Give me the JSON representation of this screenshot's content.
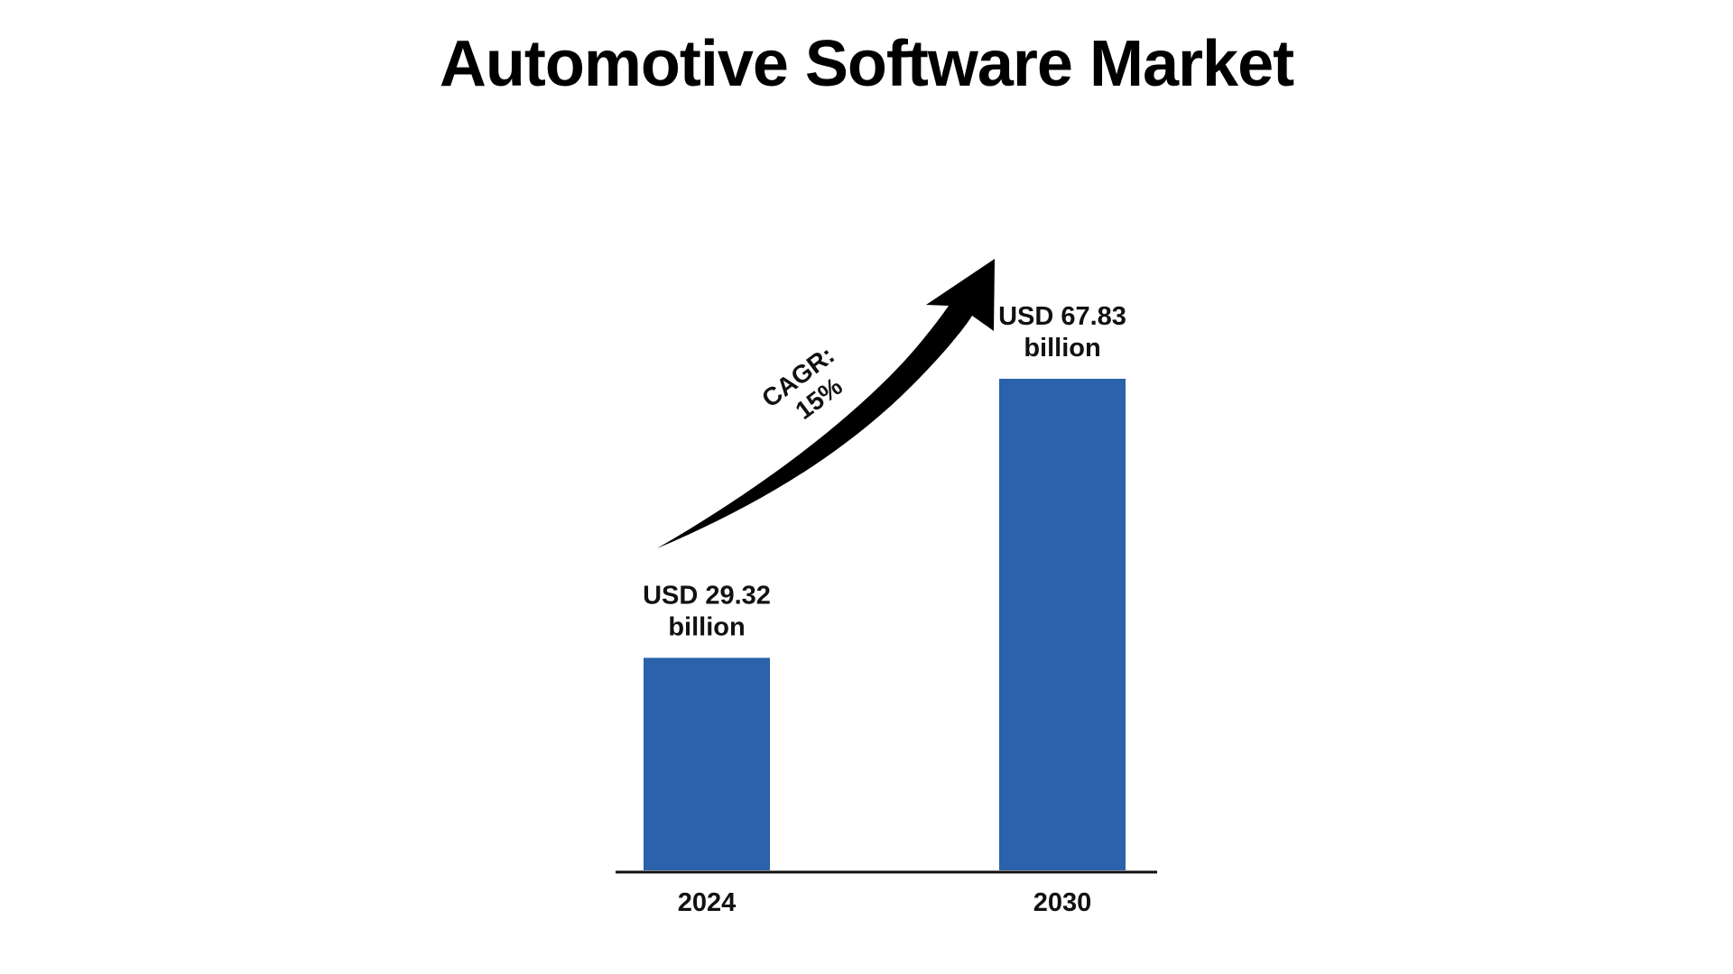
{
  "title": "Automotive Software Market",
  "annotation": {
    "cagr_line1": "CAGR:",
    "cagr_line2": "15%"
  },
  "colors": {
    "bar": "#2a62ab",
    "axis": "#111111",
    "arrow": "#000000",
    "text": "#111111"
  },
  "chart_data": {
    "type": "bar",
    "title": "Automotive Software Market",
    "categories": [
      "2024",
      "2030"
    ],
    "values": [
      29.32,
      67.83
    ],
    "unit": "USD billion",
    "data_labels": [
      [
        "USD 29.32",
        "billion"
      ],
      [
        "USD 67.83",
        "billion"
      ]
    ],
    "annotation": "CAGR: 15%",
    "xlabel": "",
    "ylabel": "",
    "ylim": [
      0,
      67.83
    ],
    "grid": false,
    "legend": "none"
  }
}
